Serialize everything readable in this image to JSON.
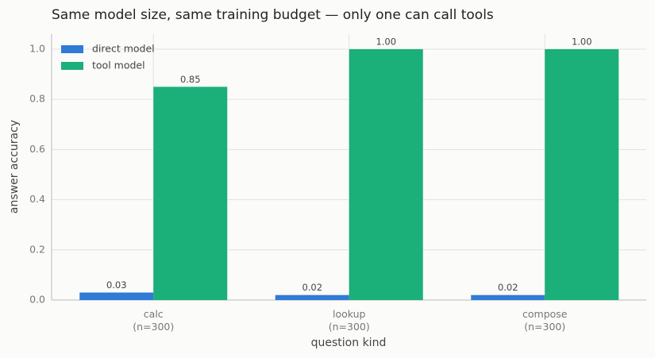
{
  "chart_data": {
    "type": "bar",
    "title": "Same model size, same training budget — only one can call tools",
    "xlabel": "question kind",
    "ylabel": "answer accuracy",
    "categories": [
      "calc\n(n=300)",
      "lookup\n(n=300)",
      "compose\n(n=300)"
    ],
    "series": [
      {
        "name": "direct model",
        "color": "#2f7bd6",
        "values": [
          0.03,
          0.02,
          0.02
        ],
        "value_labels": [
          "0.03",
          "0.02",
          "0.02"
        ]
      },
      {
        "name": "tool model",
        "color": "#1baf7a",
        "values": [
          0.85,
          1,
          1
        ],
        "value_labels": [
          "0.85",
          "1.00",
          "1.00"
        ]
      }
    ],
    "ylim": [
      0,
      1.06
    ],
    "yticks": [
      {
        "value": 0,
        "label": "0.0"
      },
      0.2,
      0.4,
      0.6,
      0.8,
      {
        "value": 1,
        "label": "1.0"
      }
    ],
    "grid": true,
    "legend": "upper left"
  }
}
